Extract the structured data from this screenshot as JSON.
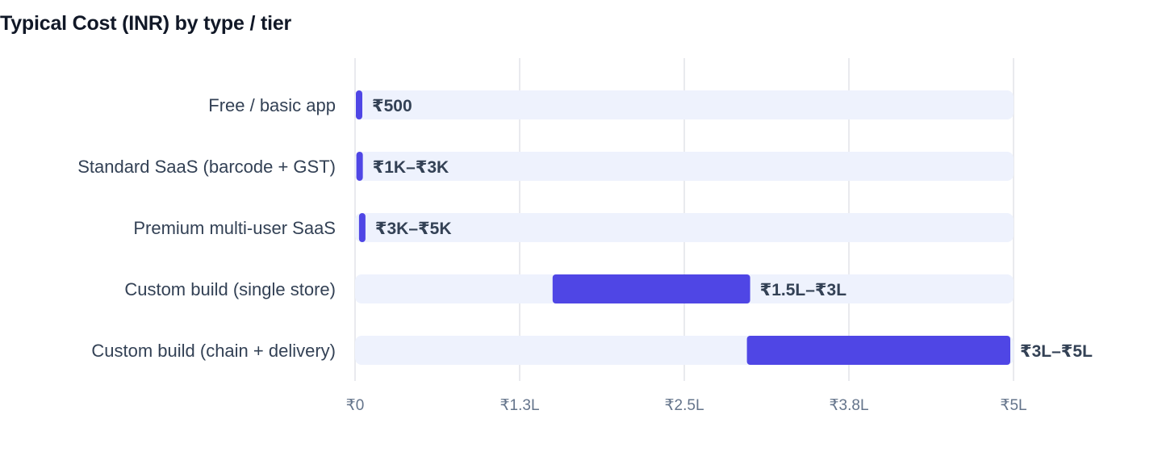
{
  "chart_data": {
    "type": "bar",
    "orientation": "horizontal",
    "title": "Typical Cost (INR) by type / tier",
    "xlabel": "",
    "ylabel": "",
    "xlim": [
      0,
      500000
    ],
    "grid": true,
    "x_ticks": [
      {
        "value": 0,
        "label": "₹0"
      },
      {
        "value": 125000,
        "label": "₹1.3L"
      },
      {
        "value": 250000,
        "label": "₹2.5L"
      },
      {
        "value": 375000,
        "label": "₹3.8L"
      },
      {
        "value": 500000,
        "label": "₹5L"
      }
    ],
    "categories": [
      "Free / basic app",
      "Standard SaaS (barcode + GST)",
      "Premium multi-user SaaS",
      "Custom build (single store)",
      "Custom build (chain + delivery)"
    ],
    "ranges": [
      {
        "low": 0,
        "high": 500,
        "label": "₹500"
      },
      {
        "low": 1000,
        "high": 3000,
        "label": "₹1K–₹3K"
      },
      {
        "low": 3000,
        "high": 5000,
        "label": "₹3K–₹5K"
      },
      {
        "low": 150000,
        "high": 300000,
        "label": "₹1.5L–₹3L"
      },
      {
        "low": 300000,
        "high": 500000,
        "label": "₹3L–₹5L"
      }
    ],
    "colors": {
      "bar": "#4f46e5",
      "track": "#eef2fd",
      "grid": "#e2e4e8"
    }
  }
}
